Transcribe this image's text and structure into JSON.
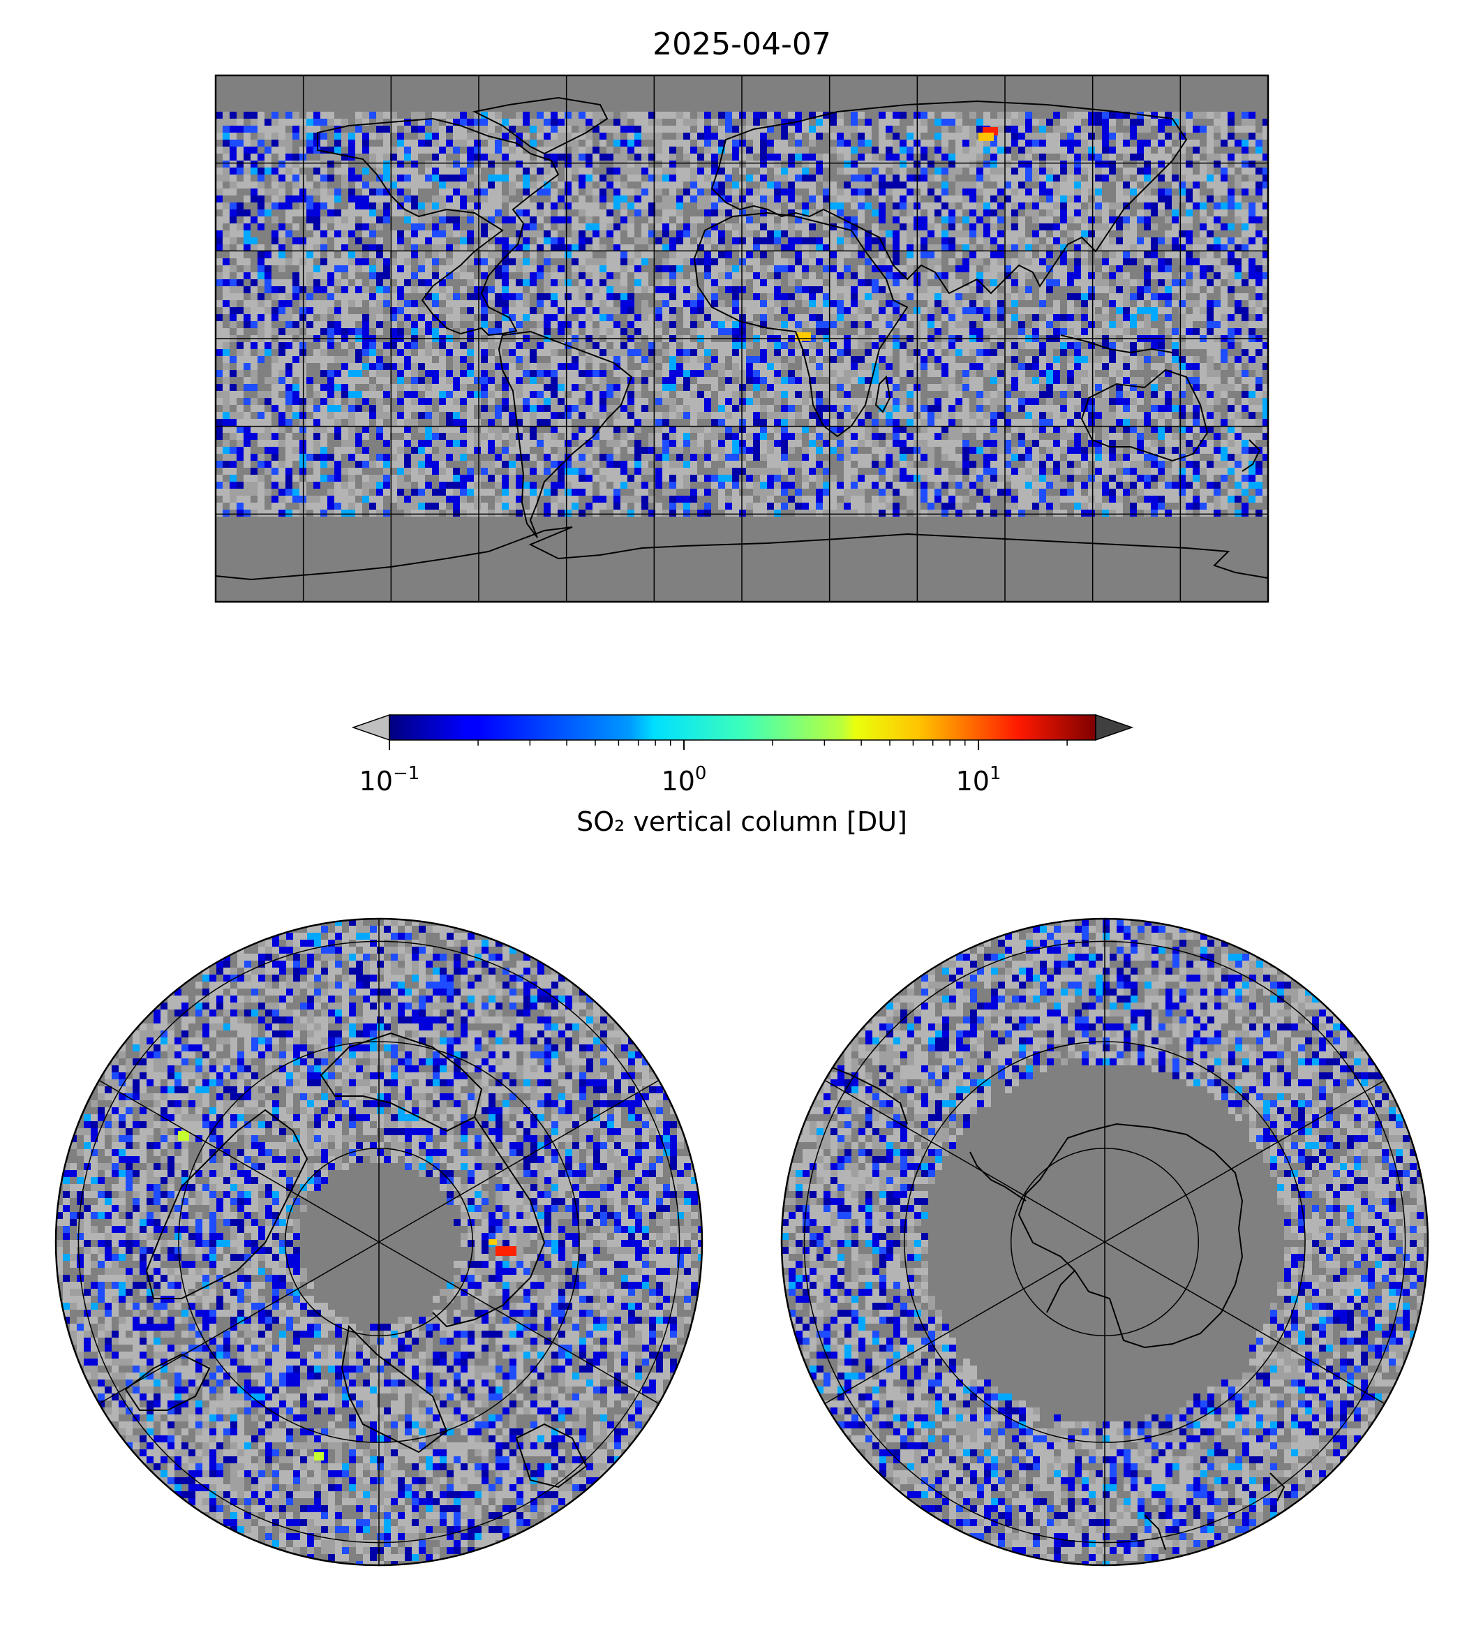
{
  "title": "2025-04-07",
  "colorbar": {
    "label": "SO₂ vertical column [DU]",
    "scale": "log",
    "min": 0.1,
    "max": 25,
    "extend": "both",
    "under_color": "#c0c0c0",
    "over_color": "#404040",
    "colormap": "jet",
    "ticks": [
      {
        "value": 0.1,
        "base": "10",
        "exp": "−1"
      },
      {
        "value": 1,
        "base": "10",
        "exp": "0"
      },
      {
        "value": 10,
        "base": "10",
        "exp": "1"
      }
    ]
  },
  "maps": [
    {
      "id": "global",
      "projection": "plate-carree",
      "gridlines": true,
      "background": "#808080"
    },
    {
      "id": "north-pole",
      "projection": "north-polar-stereographic",
      "gridlines": true,
      "background": "#808080"
    },
    {
      "id": "south-pole",
      "projection": "south-polar-stereographic",
      "gridlines": true,
      "background": "#808080"
    }
  ],
  "colors": {
    "no_data": "#808080",
    "below_range": "#c0c0c0",
    "coastline": "#000000",
    "gridline": "#000000"
  }
}
